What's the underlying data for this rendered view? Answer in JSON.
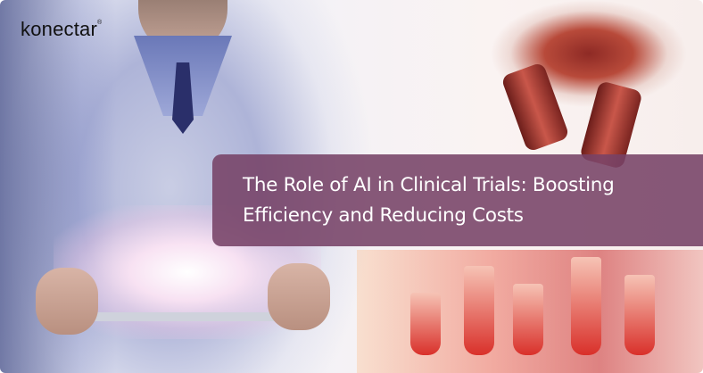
{
  "logo": {
    "text": "konectar",
    "mark": "®"
  },
  "banner": {
    "title": "The Role of AI in Clinical Trials: Boosting Efficiency and Reducing Costs"
  },
  "colors": {
    "banner": "#764266",
    "text": "#ffffff"
  }
}
